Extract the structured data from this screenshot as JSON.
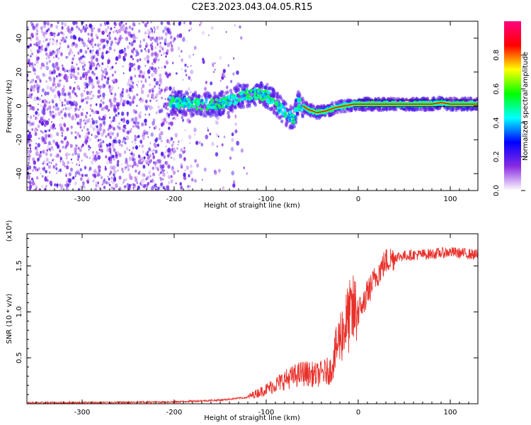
{
  "figure": {
    "title": "C2E3.2023.043.04.05.R15"
  },
  "chart_data": [
    {
      "type": "heatmap",
      "name": "spectrogram",
      "xlabel": "Height of straight line (km)",
      "ylabel": "Frequency (Hz)",
      "xlim": [
        -360,
        130
      ],
      "ylim": [
        -50,
        50
      ],
      "x_ticks": [
        -300,
        -200,
        -100,
        0,
        100
      ],
      "x_tick_labels": [
        "-300",
        "-200",
        "-100",
        "0",
        "100"
      ],
      "y_ticks": [
        -40,
        -20,
        0,
        20,
        40
      ],
      "y_tick_labels": [
        "-40",
        "-20",
        "0",
        "20",
        "40"
      ],
      "ridge": {
        "description_points_x": [
          -200,
          -180,
          -150,
          -125,
          -110,
          -100,
          -90,
          -80,
          -75,
          -70,
          -65,
          -55,
          -45,
          -35,
          -25,
          -15,
          -5,
          0,
          20,
          50,
          80,
          90,
          100,
          130
        ],
        "description_points_y": [
          2,
          1,
          1,
          6,
          7,
          6,
          2,
          -4,
          -6,
          -8,
          2,
          -2,
          -4,
          -3,
          -1,
          0,
          1,
          1,
          1,
          1,
          1,
          2,
          1,
          1
        ]
      },
      "colorbar": {
        "label": "Normalized spectral amplitude",
        "range": [
          0.0,
          1.0
        ],
        "ticks": [
          0.0,
          0.2,
          0.4,
          0.6,
          0.8
        ],
        "tick_labels": [
          "0.0",
          "0.2",
          "0.4",
          "0.6",
          "0.8"
        ],
        "colors": [
          "#ffffff",
          "#8a2be2",
          "#0000ff",
          "#00ffff",
          "#00ff00",
          "#ffff00",
          "#ff0000",
          "#ff0080"
        ]
      }
    },
    {
      "type": "line",
      "name": "snr",
      "xlabel": "Height of straight line (km)",
      "ylabel": "SNR (10 * v/v)",
      "scale_label": "(x10⁴)",
      "xlim": [
        -360,
        130
      ],
      "ylim": [
        0,
        1.85
      ],
      "x_ticks": [
        -300,
        -200,
        -100,
        0,
        100
      ],
      "x_tick_labels": [
        "-300",
        "-200",
        "-100",
        "0",
        "100"
      ],
      "y_ticks": [
        0.5,
        1.0,
        1.5
      ],
      "y_tick_labels": [
        "0.5",
        "1.0",
        "1.5"
      ],
      "color": "#e8302a",
      "envelope": {
        "x": [
          -360,
          -250,
          -200,
          -150,
          -120,
          -100,
          -80,
          -60,
          -45,
          -30,
          -20,
          -10,
          0,
          10,
          20,
          30,
          40,
          60,
          80,
          100,
          130
        ],
        "y": [
          0.01,
          0.015,
          0.02,
          0.04,
          0.07,
          0.15,
          0.25,
          0.32,
          0.3,
          0.35,
          0.7,
          0.9,
          1.0,
          1.2,
          1.4,
          1.55,
          1.6,
          1.62,
          1.63,
          1.65,
          1.62
        ]
      }
    }
  ]
}
